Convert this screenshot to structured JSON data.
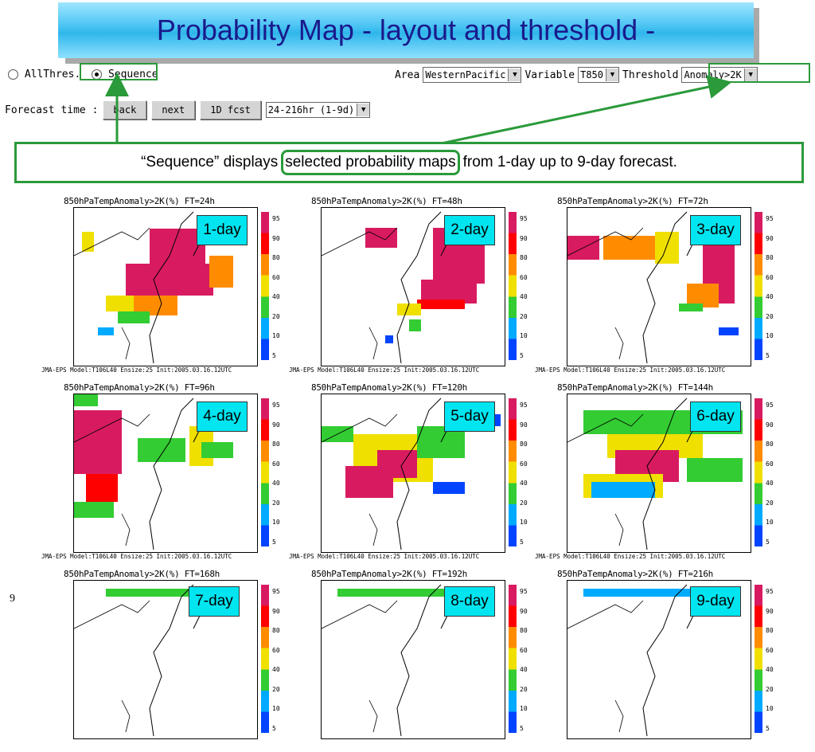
{
  "title": "Probability Map  - layout and threshold -",
  "controls": {
    "radio_all": "AllThres.",
    "radio_sequence": "Sequence",
    "area_label": "Area",
    "area_value": "WesternPacific",
    "variable_label": "Variable",
    "variable_value": "T850",
    "threshold_label": "Threshold",
    "threshold_value": "Anomaly>2K",
    "forecast_label": "Forecast time :",
    "back_button": "back",
    "next_button": "next",
    "fcst_button": "1D fcst",
    "range_value": "24-216hr (1-9d)"
  },
  "callout": {
    "before": "“Sequence” displays",
    "highlight": "selected probability maps",
    "after": "from 1-day up to 9-day forecast."
  },
  "maps": [
    {
      "title": "850hPaTempAnomaly>2K(%) FT=24h",
      "day": "1-day"
    },
    {
      "title": "850hPaTempAnomaly>2K(%) FT=48h",
      "day": "2-day"
    },
    {
      "title": "850hPaTempAnomaly>2K(%) FT=72h",
      "day": "3-day"
    },
    {
      "title": "850hPaTempAnomaly>2K(%) FT=96h",
      "day": "4-day"
    },
    {
      "title": "850hPaTempAnomaly>2K(%) FT=120h",
      "day": "5-day"
    },
    {
      "title": "850hPaTempAnomaly>2K(%) FT=144h",
      "day": "6-day"
    },
    {
      "title": "850hPaTempAnomaly>2K(%) FT=168h",
      "day": "7-day"
    },
    {
      "title": "850hPaTempAnomaly>2K(%) FT=192h",
      "day": "8-day"
    },
    {
      "title": "850hPaTempAnomaly>2K(%) FT=216h",
      "day": "9-day"
    }
  ],
  "caption": "JMA-EPS Model:T106L40 Ensize:25 Init:2005.03.16.12UTC",
  "legend_values": [
    "95",
    "90",
    "80",
    "60",
    "40",
    "20",
    "10",
    "5"
  ],
  "legend_colors": [
    "#d81b60",
    "#ff0000",
    "#ff8c00",
    "#f0e000",
    "#33cc33",
    "#00aaff",
    "#0044ff"
  ],
  "page_number": "9"
}
